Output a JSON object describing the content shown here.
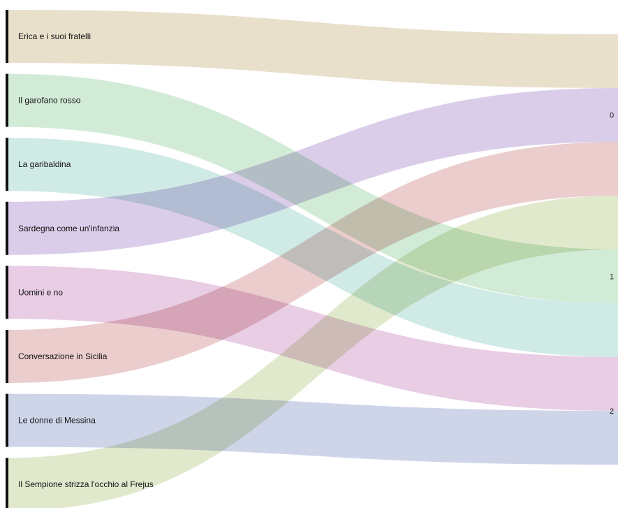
{
  "chart_data": {
    "type": "sankey",
    "sources": [
      "Erica e i suoi fratelli",
      "Il garofano rosso",
      "La garibaldina",
      "Sardegna come un'infanzia",
      "Uomini e no",
      "Conversazione in Sicilia",
      "Le donne di Messina",
      "Il Sempione strizza l'occhio al Frejus"
    ],
    "targets": [
      "0",
      "1",
      "2"
    ],
    "links": [
      {
        "source": "Erica e i suoi fratelli",
        "target": "0",
        "value": 1,
        "color": "#e6dcc4"
      },
      {
        "source": "Sardegna come un'infanzia",
        "target": "0",
        "value": 1,
        "color": "#d5c6e6"
      },
      {
        "source": "Conversazione in Sicilia",
        "target": "0",
        "value": 1,
        "color": "#e8c6c6"
      },
      {
        "source": "Il Sempione strizza l'occhio al Frejus",
        "target": "1",
        "value": 1,
        "color": "#dde6c6"
      },
      {
        "source": "Il garofano rosso",
        "target": "1",
        "value": 1,
        "color": "#cce8d2"
      },
      {
        "source": "La garibaldina",
        "target": "1",
        "value": 1,
        "color": "#c9e7e3"
      },
      {
        "source": "Uomini e no",
        "target": "2",
        "value": 1,
        "color": "#e5c6e0"
      },
      {
        "source": "Le donne di Messina",
        "target": "2",
        "value": 1,
        "color": "#c8cfe6"
      }
    ]
  }
}
